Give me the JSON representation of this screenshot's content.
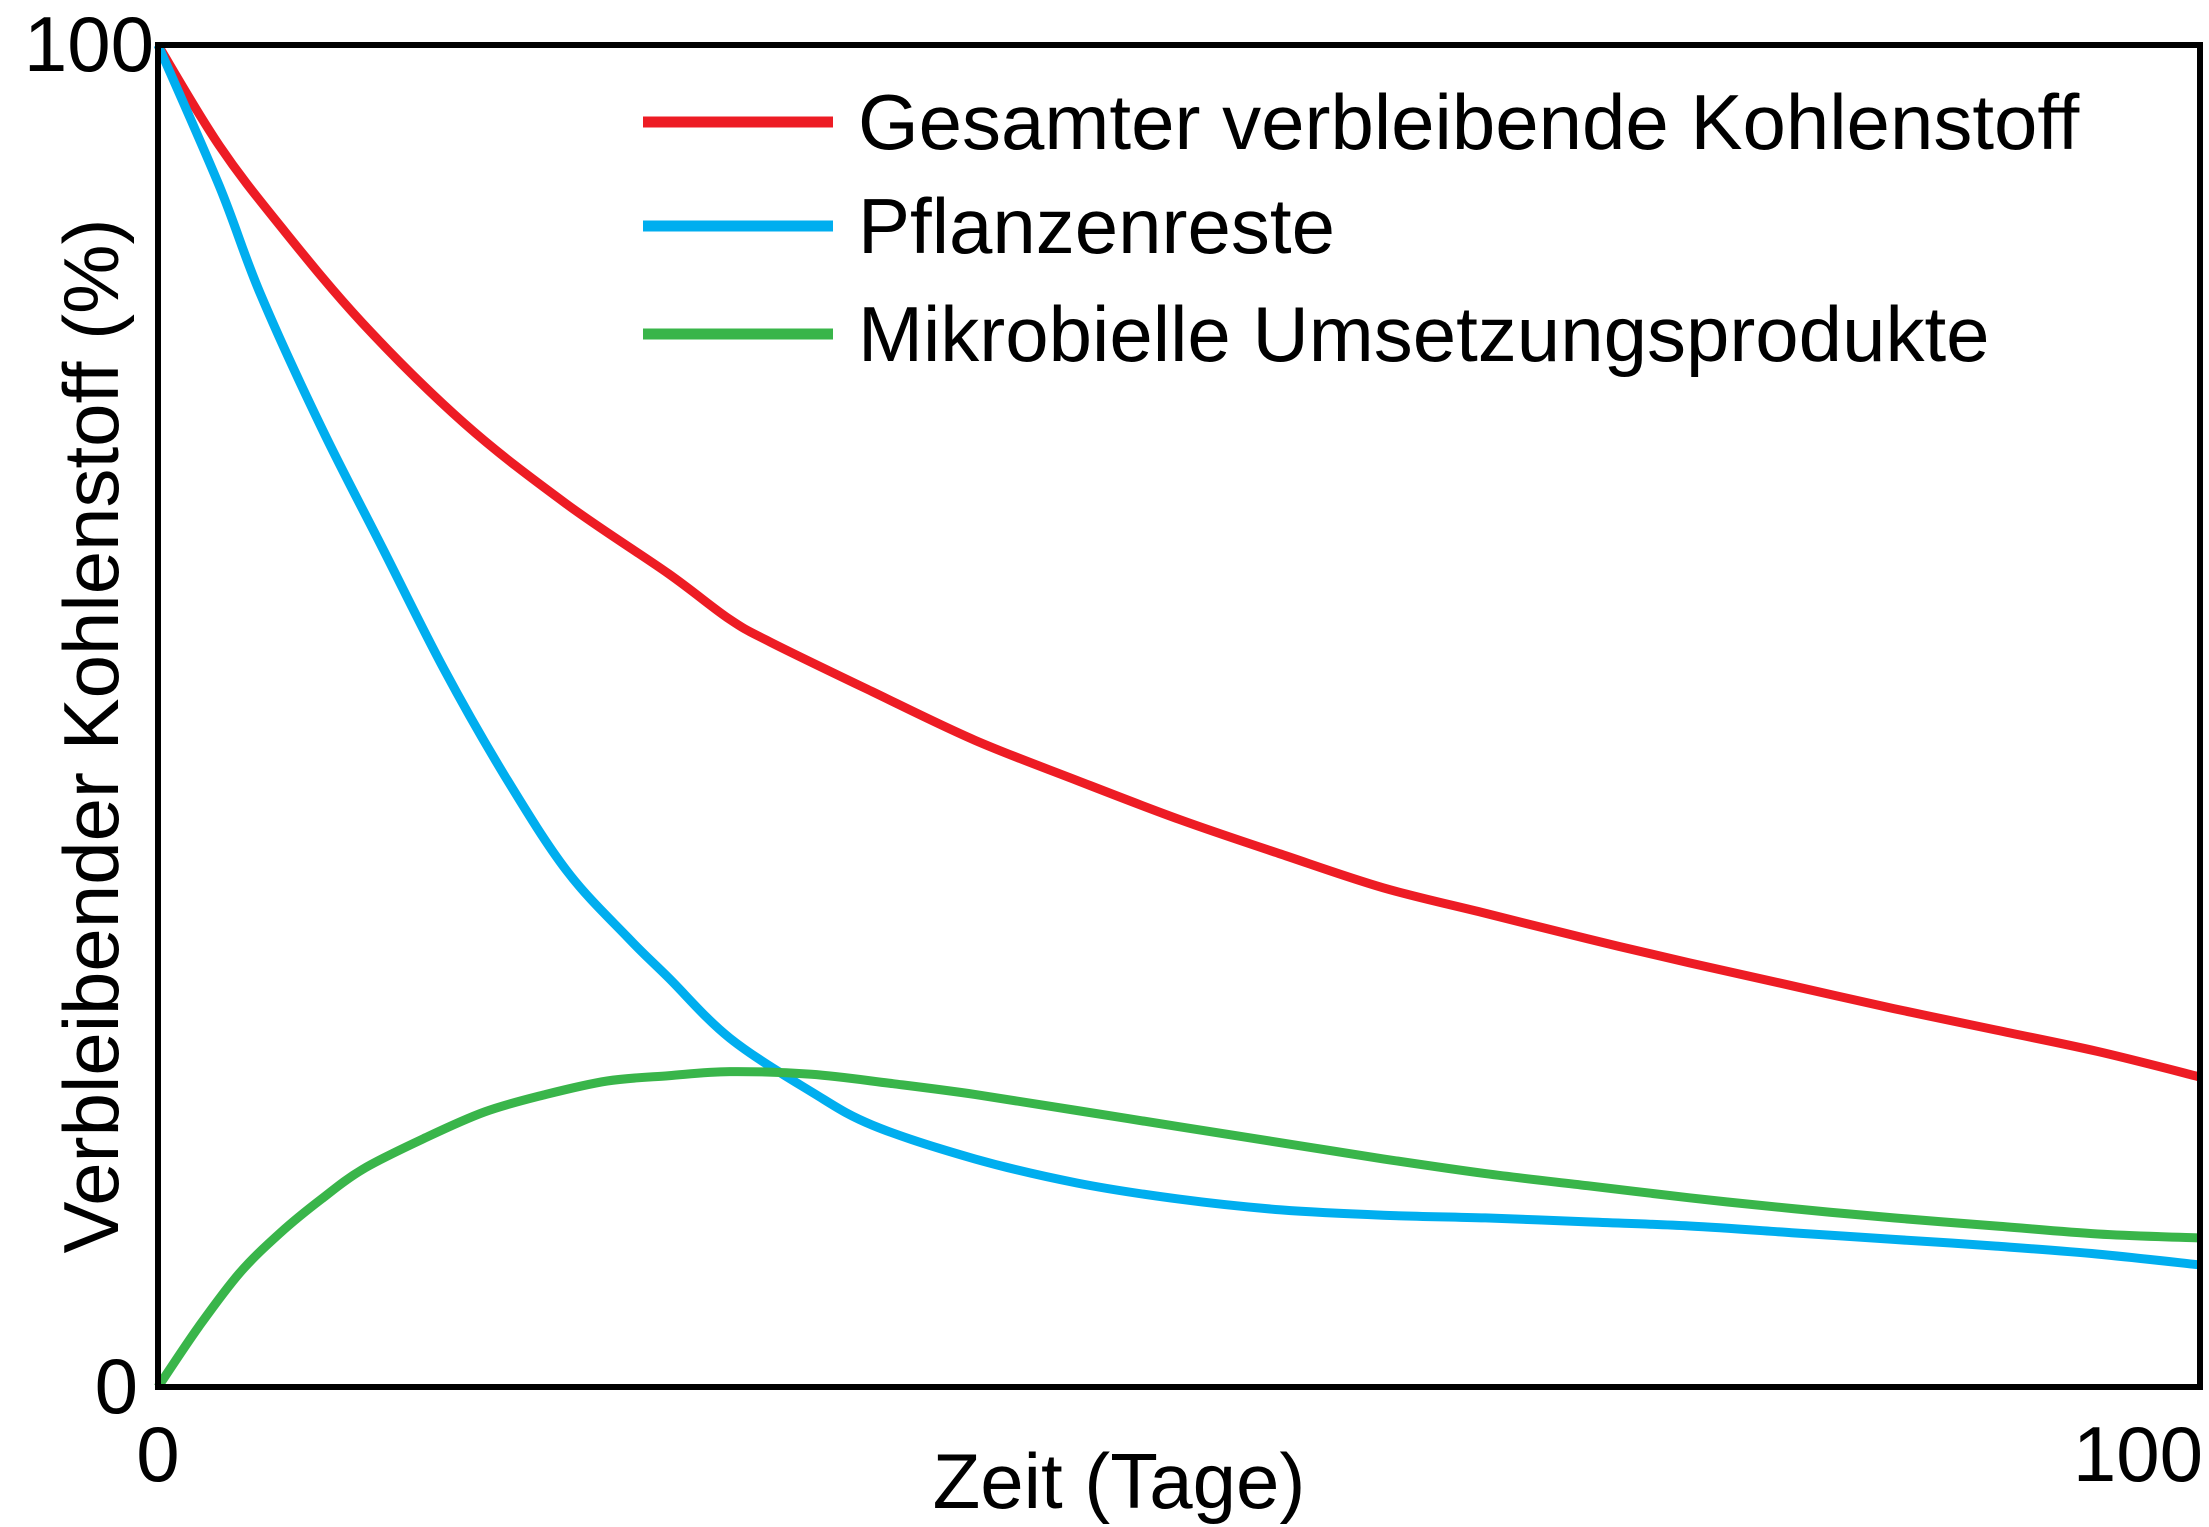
{
  "chart_data": {
    "type": "line",
    "title": "",
    "xlabel": "Zeit (Tage)",
    "ylabel": "Verbleibender Kohlenstoff (%)",
    "xlim": [
      0,
      100
    ],
    "ylim": [
      0,
      100
    ],
    "x_ticks": [
      "0",
      "100"
    ],
    "y_ticks": [
      "0",
      "100"
    ],
    "grid": false,
    "legend_position": "top-right",
    "series": [
      {
        "name": "Gesamter verbleibende Kohlenstoff",
        "color": "#ed1c24",
        "points": [
          [
            0,
            100
          ],
          [
            3,
            92.5
          ],
          [
            6,
            86.5
          ],
          [
            10,
            79.3
          ],
          [
            15,
            71.8
          ],
          [
            20,
            65.8
          ],
          [
            25,
            60.6
          ],
          [
            28,
            57.2
          ],
          [
            30,
            55.5
          ],
          [
            35,
            51.8
          ],
          [
            40,
            48.2
          ],
          [
            45,
            45.2
          ],
          [
            50,
            42.3
          ],
          [
            55,
            39.7
          ],
          [
            60,
            37.2
          ],
          [
            65,
            35.3
          ],
          [
            70,
            33.4
          ],
          [
            75,
            31.6
          ],
          [
            80,
            29.9
          ],
          [
            85,
            28.2
          ],
          [
            90,
            26.6
          ],
          [
            95,
            25.0
          ],
          [
            100,
            23.1
          ]
        ]
      },
      {
        "name": "Pflanzenreste",
        "color": "#00aeef",
        "points": [
          [
            0,
            100
          ],
          [
            3,
            89.5
          ],
          [
            5,
            81.5
          ],
          [
            8,
            71.5
          ],
          [
            11,
            62.5
          ],
          [
            14,
            53.5
          ],
          [
            17,
            45.5
          ],
          [
            20,
            38.5
          ],
          [
            23,
            33.5
          ],
          [
            25,
            30.5
          ],
          [
            28,
            26.0
          ],
          [
            32,
            22.0
          ],
          [
            35,
            19.5
          ],
          [
            40,
            17.0
          ],
          [
            45,
            15.2
          ],
          [
            50,
            14.0
          ],
          [
            55,
            13.2
          ],
          [
            60,
            12.8
          ],
          [
            65,
            12.6
          ],
          [
            70,
            12.3
          ],
          [
            75,
            12.0
          ],
          [
            80,
            11.5
          ],
          [
            85,
            11.0
          ],
          [
            90,
            10.5
          ],
          [
            95,
            9.9
          ],
          [
            100,
            9.1
          ]
        ]
      },
      {
        "name": "Mikrobielle Umsetzungsprodukte",
        "color": "#39b54a",
        "points": [
          [
            0,
            0
          ],
          [
            2,
            4.5
          ],
          [
            4,
            8.5
          ],
          [
            6,
            11.5
          ],
          [
            8,
            14.0
          ],
          [
            10,
            16.2
          ],
          [
            13,
            18.5
          ],
          [
            16,
            20.5
          ],
          [
            19,
            21.8
          ],
          [
            22,
            22.8
          ],
          [
            25,
            23.2
          ],
          [
            28,
            23.5
          ],
          [
            32,
            23.3
          ],
          [
            36,
            22.6
          ],
          [
            40,
            21.8
          ],
          [
            45,
            20.6
          ],
          [
            50,
            19.4
          ],
          [
            55,
            18.2
          ],
          [
            60,
            17.0
          ],
          [
            65,
            15.9
          ],
          [
            70,
            15.0
          ],
          [
            75,
            14.1
          ],
          [
            80,
            13.3
          ],
          [
            85,
            12.6
          ],
          [
            90,
            12.0
          ],
          [
            95,
            11.4
          ],
          [
            100,
            11.1
          ]
        ]
      }
    ]
  }
}
